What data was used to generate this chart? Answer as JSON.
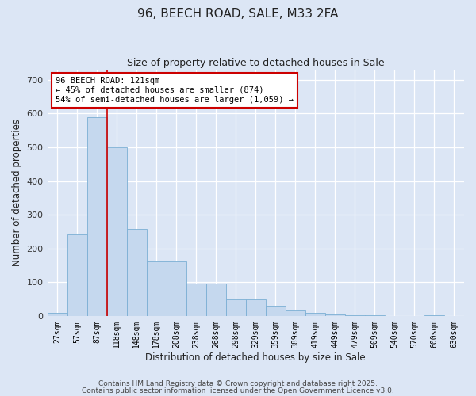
{
  "title1": "96, BEECH ROAD, SALE, M33 2FA",
  "title2": "Size of property relative to detached houses in Sale",
  "xlabel": "Distribution of detached houses by size in Sale",
  "ylabel": "Number of detached properties",
  "categories": [
    "27sqm",
    "57sqm",
    "87sqm",
    "118sqm",
    "148sqm",
    "178sqm",
    "208sqm",
    "238sqm",
    "268sqm",
    "298sqm",
    "329sqm",
    "359sqm",
    "389sqm",
    "419sqm",
    "449sqm",
    "479sqm",
    "509sqm",
    "540sqm",
    "570sqm",
    "600sqm",
    "630sqm"
  ],
  "values": [
    10,
    242,
    590,
    500,
    258,
    162,
    162,
    95,
    95,
    50,
    50,
    30,
    15,
    8,
    4,
    2,
    1,
    0,
    0,
    3,
    0
  ],
  "bar_color": "#c5d8ee",
  "bar_edge_color": "#7bafd4",
  "vline_color": "#cc0000",
  "annotation_text": "96 BEECH ROAD: 121sqm\n← 45% of detached houses are smaller (874)\n54% of semi-detached houses are larger (1,059) →",
  "annotation_box_color": "#ffffff",
  "annotation_border_color": "#cc0000",
  "bg_color": "#dce6f5",
  "plot_bg_color": "#dce6f5",
  "footer1": "Contains HM Land Registry data © Crown copyright and database right 2025.",
  "footer2": "Contains public sector information licensed under the Open Government Licence v3.0.",
  "ylim": [
    0,
    730
  ],
  "yticks": [
    0,
    100,
    200,
    300,
    400,
    500,
    600,
    700
  ]
}
